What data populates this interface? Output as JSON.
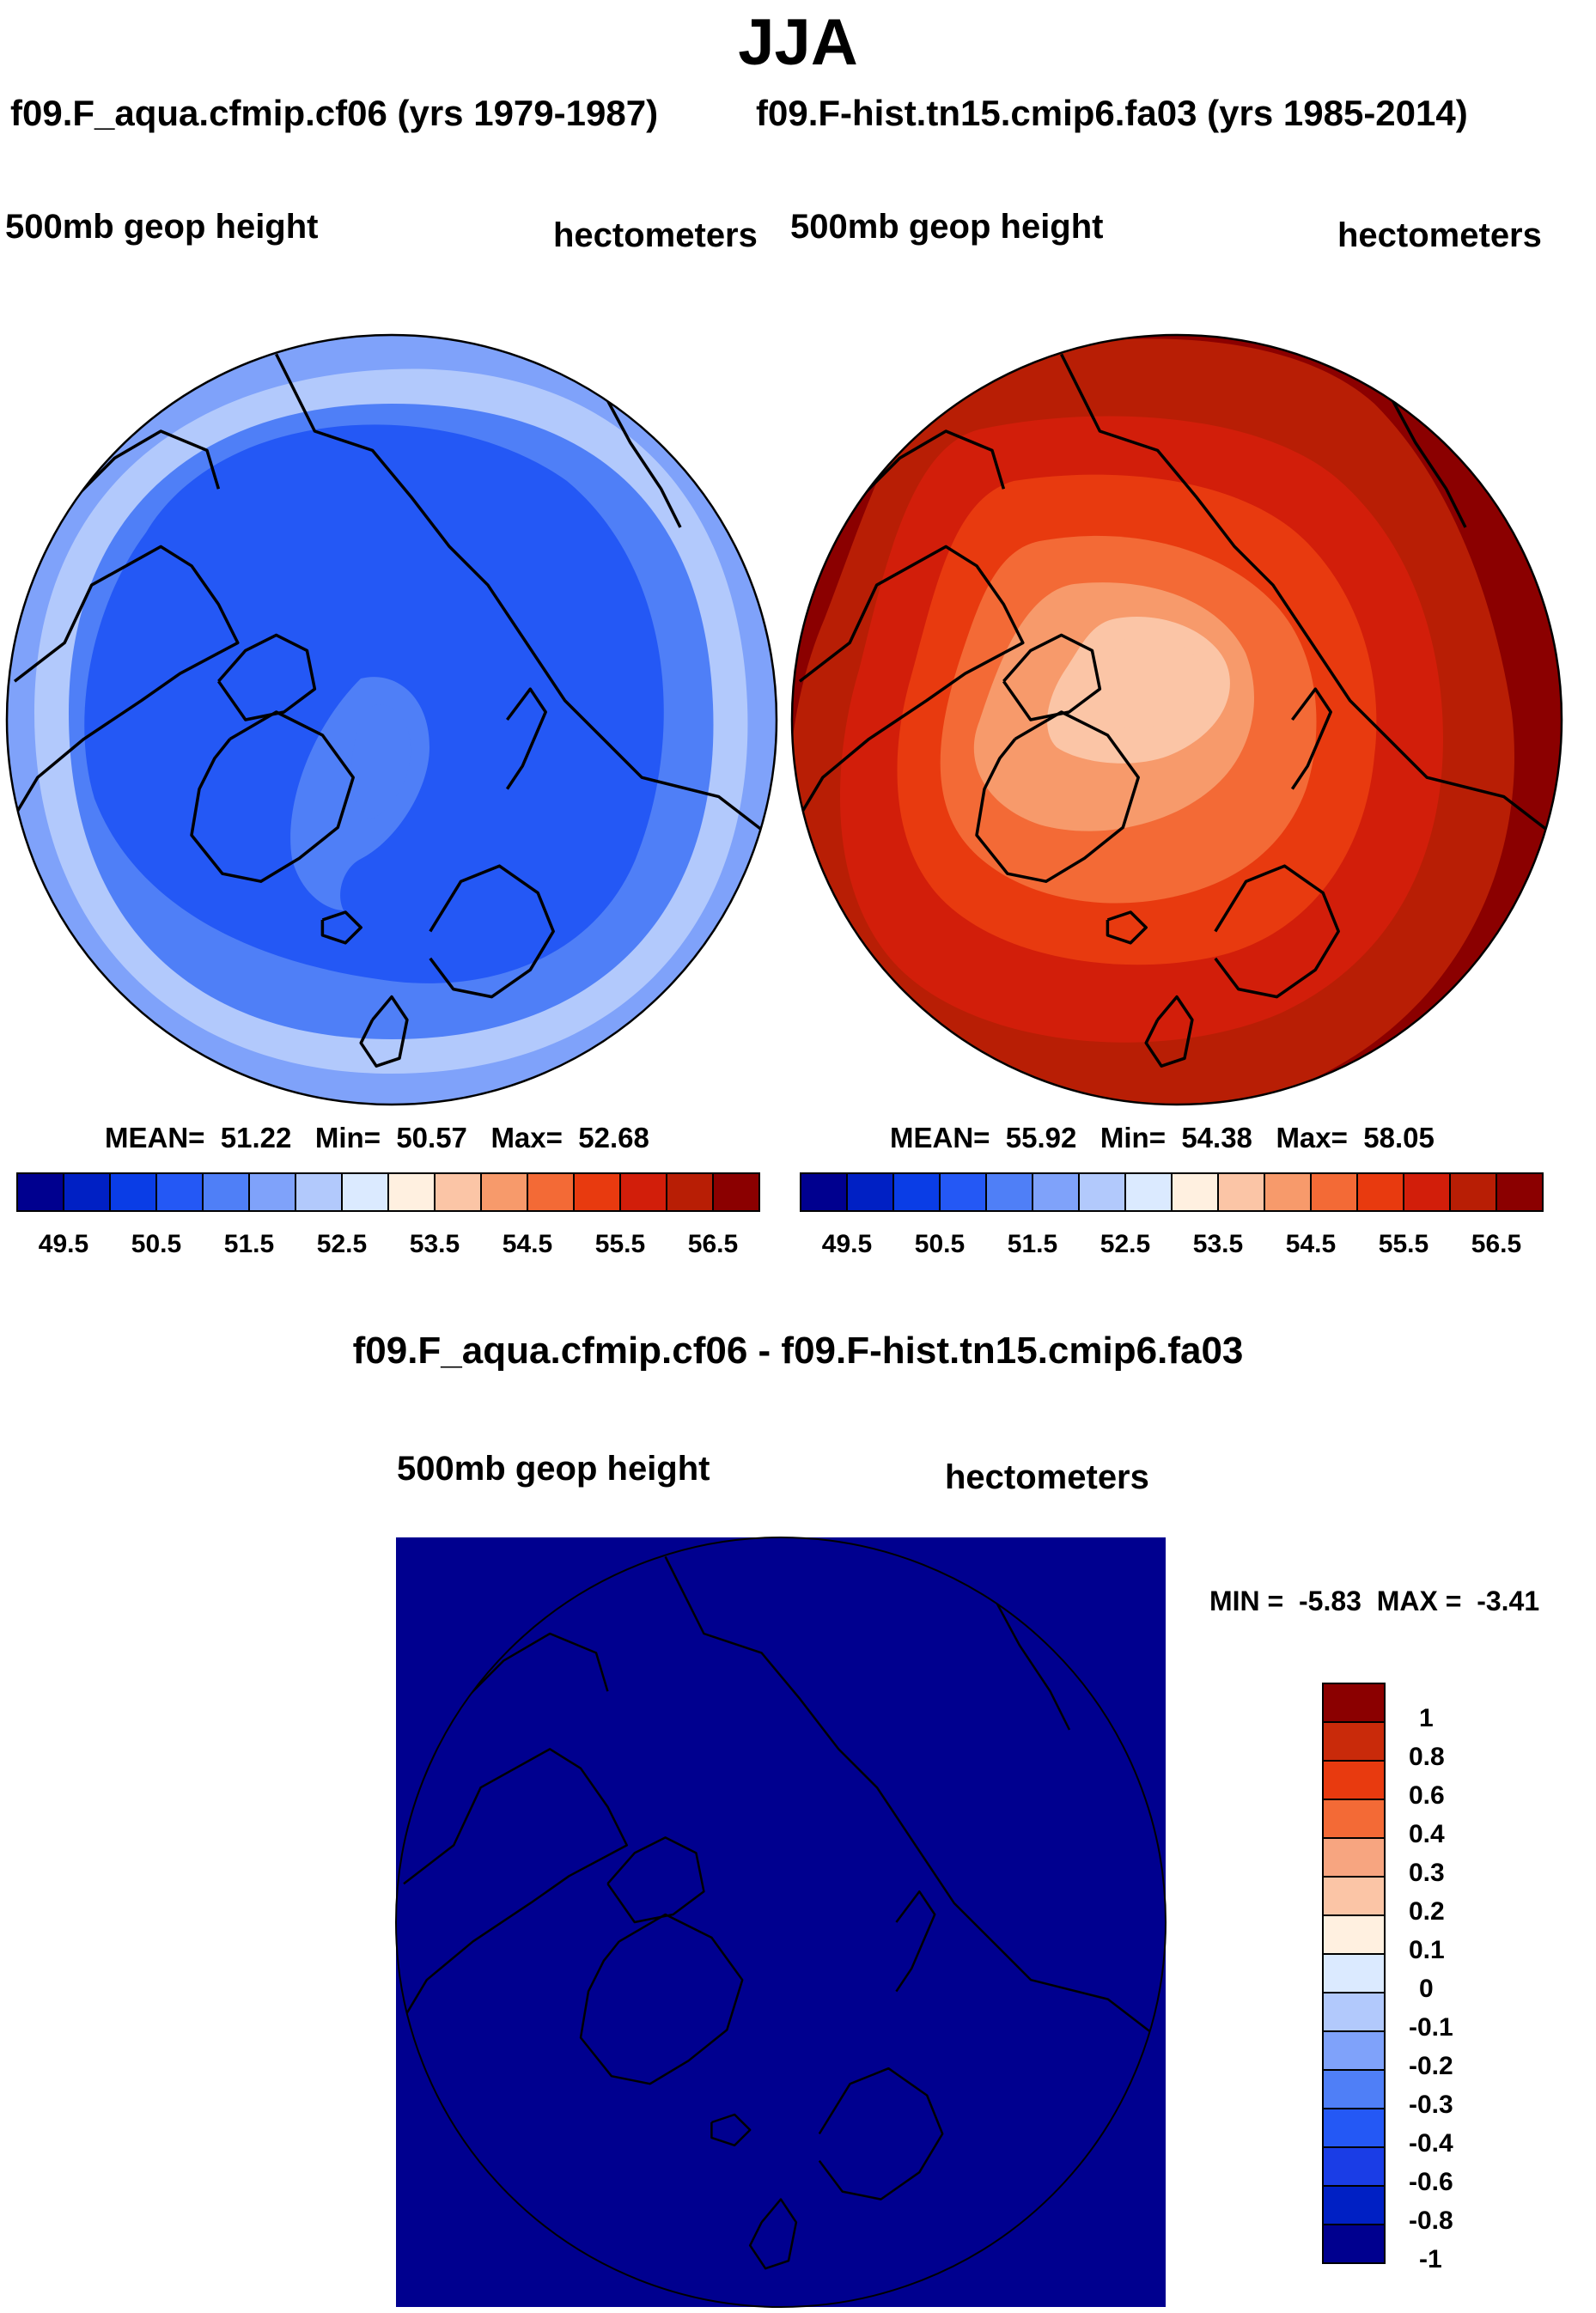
{
  "figure": {
    "title": "JJA",
    "case1_title": "f09.F_aqua.cfmip.cf06 (yrs 1979-1987)",
    "case2_title": "f09.F-hist.tn15.cmip6.fa03 (yrs 1985-2014)",
    "diff_title": "f09.F_aqua.cfmip.cf06 - f09.F-hist.tn15.cmip6.fa03"
  },
  "panels": [
    {
      "variable": "500mb geop height",
      "units": "hectometers",
      "stats": {
        "mean_label": "MEAN=",
        "mean": "51.22",
        "min_label": "Min=",
        "min": "50.57",
        "max_label": "Max=",
        "max": "52.68"
      }
    },
    {
      "variable": "500mb geop height",
      "units": "hectometers",
      "stats": {
        "mean_label": "MEAN=",
        "mean": "55.92",
        "min_label": "Min=",
        "min": "54.38",
        "max_label": "Max=",
        "max": "58.05"
      }
    },
    {
      "variable": "500mb geop height",
      "units": "hectometers",
      "stats": {
        "min_label": "MIN =",
        "min": "-5.83",
        "max_label": "MAX =",
        "max": "-3.41"
      }
    }
  ],
  "colors": {
    "abs_scale": [
      "#00008f",
      "#0020c4",
      "#0a3de6",
      "#2458f5",
      "#4f7ff7",
      "#7fa2fa",
      "#b2c9fc",
      "#dbeaff",
      "#fff0e0",
      "#fbc5a6",
      "#f79a6b",
      "#f36a36",
      "#e83a0f",
      "#d21e0a",
      "#b81e05",
      "#8b0000"
    ],
    "diff_scale": [
      "#00008f",
      "#0020c4",
      "#1a3de6",
      "#2458f5",
      "#4f7ff7",
      "#7fa2fa",
      "#b2c9fc",
      "#dbeaff",
      "#fff0e0",
      "#fbc5a6",
      "#f7a580",
      "#f36a36",
      "#e83a0f",
      "#c92a0a",
      "#8b0000"
    ],
    "diff_fill": "#00008f",
    "map_bg": "#ffffff",
    "outline": "#000000"
  },
  "chart_data": [
    {
      "type": "heatmap",
      "projection": "north polar stereographic",
      "title": "f09.F_aqua.cfmip.cf06 (yrs 1979-1987)",
      "variable": "500mb geop height",
      "units": "hectometers",
      "mean": 51.22,
      "min": 50.57,
      "max": 52.68,
      "contour_levels": [
        49.5,
        49.75,
        50,
        50.25,
        50.5,
        50.75,
        51,
        51.25,
        51.5,
        52,
        52.5
      ],
      "colorbar_ticks": [
        "49.5",
        "50.5",
        "51.5",
        "52.5",
        "53.5",
        "54.5",
        "55.5",
        "56.5"
      ],
      "fill_rings_color_index": [
        5,
        6,
        7,
        4,
        3
      ],
      "fill_rings_radius": [
        1.0,
        0.92,
        0.84,
        0.74,
        0.6
      ]
    },
    {
      "type": "heatmap",
      "projection": "north polar stereographic",
      "title": "f09.F-hist.tn15.cmip6.fa03 (yrs 1985-2014)",
      "variable": "500mb geop height",
      "units": "hectometers",
      "mean": 55.92,
      "min": 54.38,
      "max": 58.05,
      "colorbar_ticks": [
        "49.5",
        "50.5",
        "51.5",
        "52.5",
        "53.5",
        "54.5",
        "55.5",
        "56.5"
      ],
      "fill_rings_color_index": [
        15,
        14,
        13,
        12,
        11,
        10,
        9
      ],
      "fill_rings_radius": [
        1.0,
        0.9,
        0.78,
        0.66,
        0.52,
        0.38,
        0.2
      ]
    },
    {
      "type": "heatmap",
      "projection": "north polar stereographic",
      "title": "f09.F_aqua.cfmip.cf06 - f09.F-hist.tn15.cmip6.fa03",
      "variable": "500mb geop height",
      "units": "hectometers",
      "min": -5.83,
      "max": -3.41,
      "colorbar_ticks": [
        "1",
        "0.8",
        "0.6",
        "0.4",
        "0.3",
        "0.2",
        "0.1",
        "0",
        "-0.1",
        "-0.2",
        "-0.3",
        "-0.4",
        "-0.6",
        "-0.8",
        "-1"
      ]
    }
  ]
}
